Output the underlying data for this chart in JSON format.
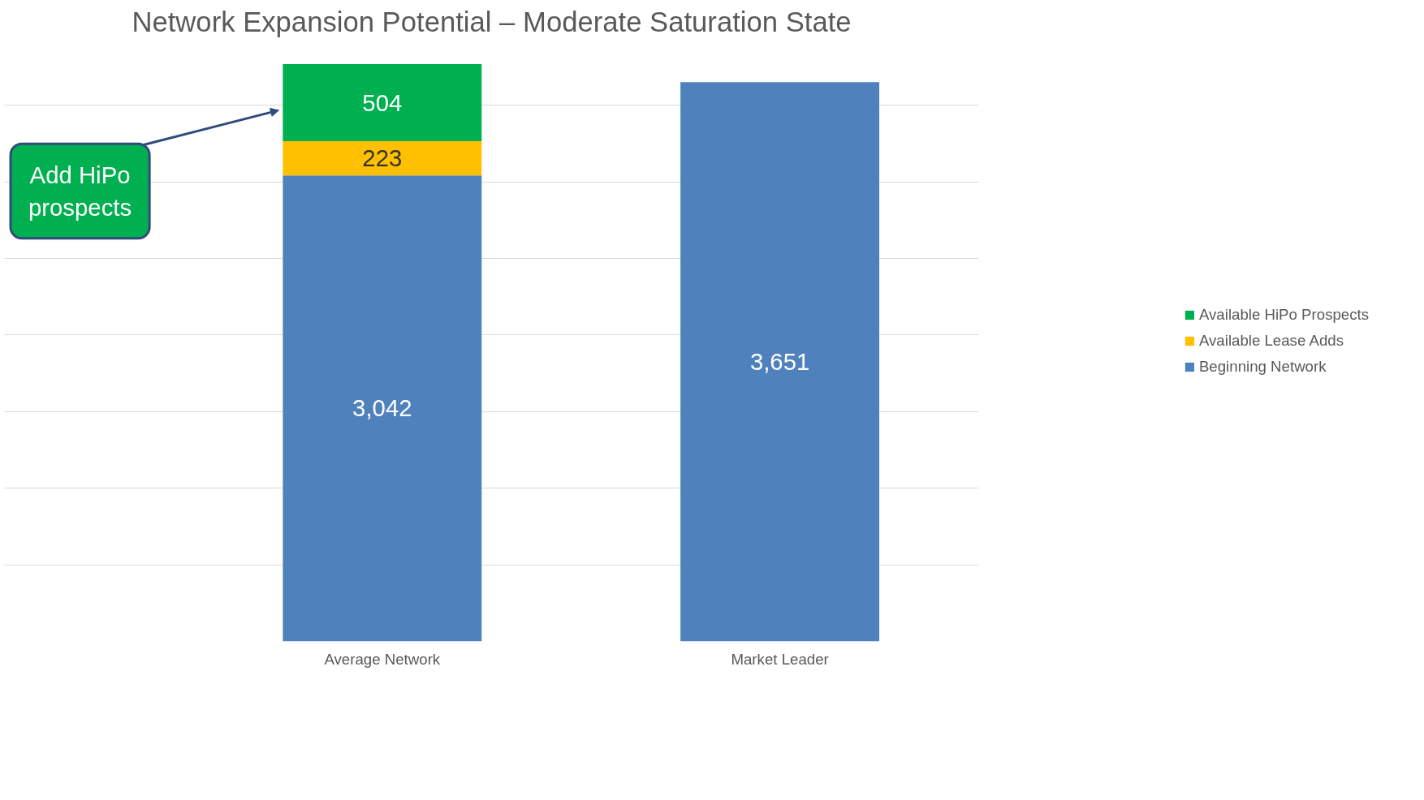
{
  "chart_data": {
    "type": "bar",
    "stacked": true,
    "title": "Network Expansion Potential – Moderate Saturation State",
    "categories": [
      "Average Network",
      "Market Leader"
    ],
    "series": [
      {
        "name": "Beginning Network",
        "color": "#4f81bd",
        "values": [
          3042,
          3651
        ],
        "value_labels": [
          "3,042",
          "3,651"
        ]
      },
      {
        "name": "Available Lease Adds",
        "color": "#ffc000",
        "values": [
          223,
          null
        ],
        "value_labels": [
          "223",
          null
        ]
      },
      {
        "name": "Available HiPo Prospects",
        "color": "#00b050",
        "values": [
          504,
          null
        ],
        "value_labels": [
          "504",
          null
        ]
      }
    ],
    "tick_labels": "x",
    "grid": "y",
    "legend": "right",
    "annotations": [
      "Add HiPo prospects"
    ]
  }
}
